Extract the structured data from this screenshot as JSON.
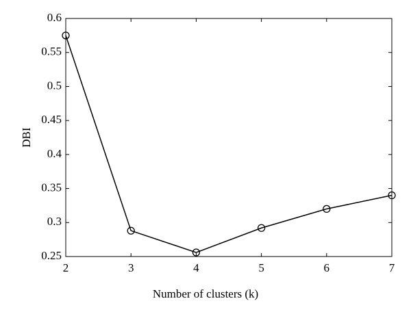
{
  "chart_data": {
    "type": "line",
    "x_label": "Number of clusters (k)",
    "y_label": "DBI",
    "x": [
      2,
      3,
      4,
      5,
      6,
      7
    ],
    "series": [
      {
        "name": "DBI",
        "color": "#000000",
        "values": [
          0.575,
          0.288,
          0.256,
          0.292,
          0.32,
          0.34
        ]
      }
    ],
    "xlim": [
      2,
      7
    ],
    "xticks": [
      2,
      3,
      4,
      5,
      6,
      7
    ],
    "ylim": [
      0.25,
      0.6
    ],
    "yticks": [
      0.25,
      0.3,
      0.35,
      0.4,
      0.45,
      0.5,
      0.55,
      0.6
    ],
    "grid": false,
    "marker": "circle"
  }
}
